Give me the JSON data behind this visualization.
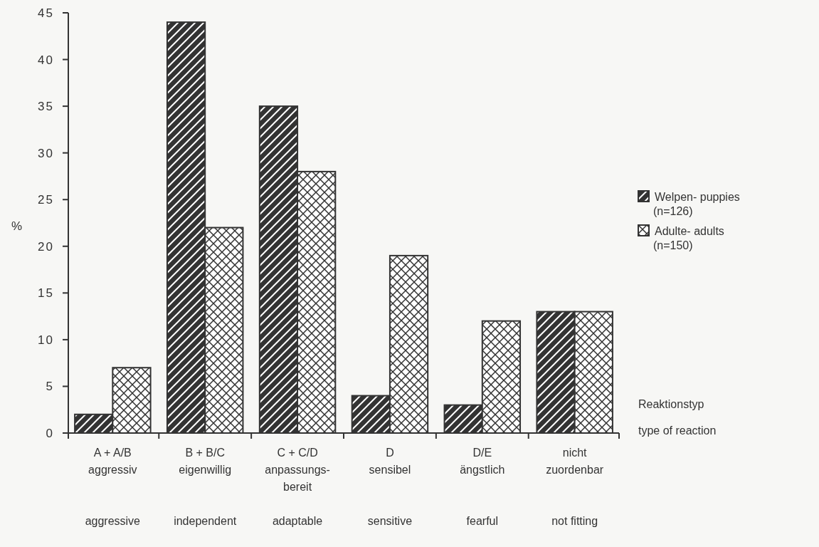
{
  "chart_data": {
    "type": "bar",
    "ylabel": "%",
    "xlabel": "Reaktionstyp\ntype of reaction",
    "categories": [
      "A + A/B\naggressiv\naggressive",
      "B + B/C\neigenwillig\nindependent",
      "C + C/D\nanpassungs-\nbereit\nadaptable",
      "D\nsensibel\nsensitive",
      "D/E\nängstlich\nfearful",
      "nicht\nzuordenbar\nnot fitting"
    ],
    "series": [
      {
        "name": "Welpen- puppies\n(n=126)",
        "color": "#333333",
        "values": [
          2,
          44,
          35,
          4,
          3,
          13
        ]
      },
      {
        "name": "Adulte- adults\n(n=150)",
        "color": "#333333",
        "values": [
          7,
          22,
          28,
          19,
          12,
          13
        ]
      }
    ],
    "ylim": [
      0,
      45
    ],
    "yticks": [
      0,
      5,
      10,
      15,
      20,
      25,
      30,
      35,
      40,
      45
    ],
    "legend": "right",
    "grid": false
  }
}
